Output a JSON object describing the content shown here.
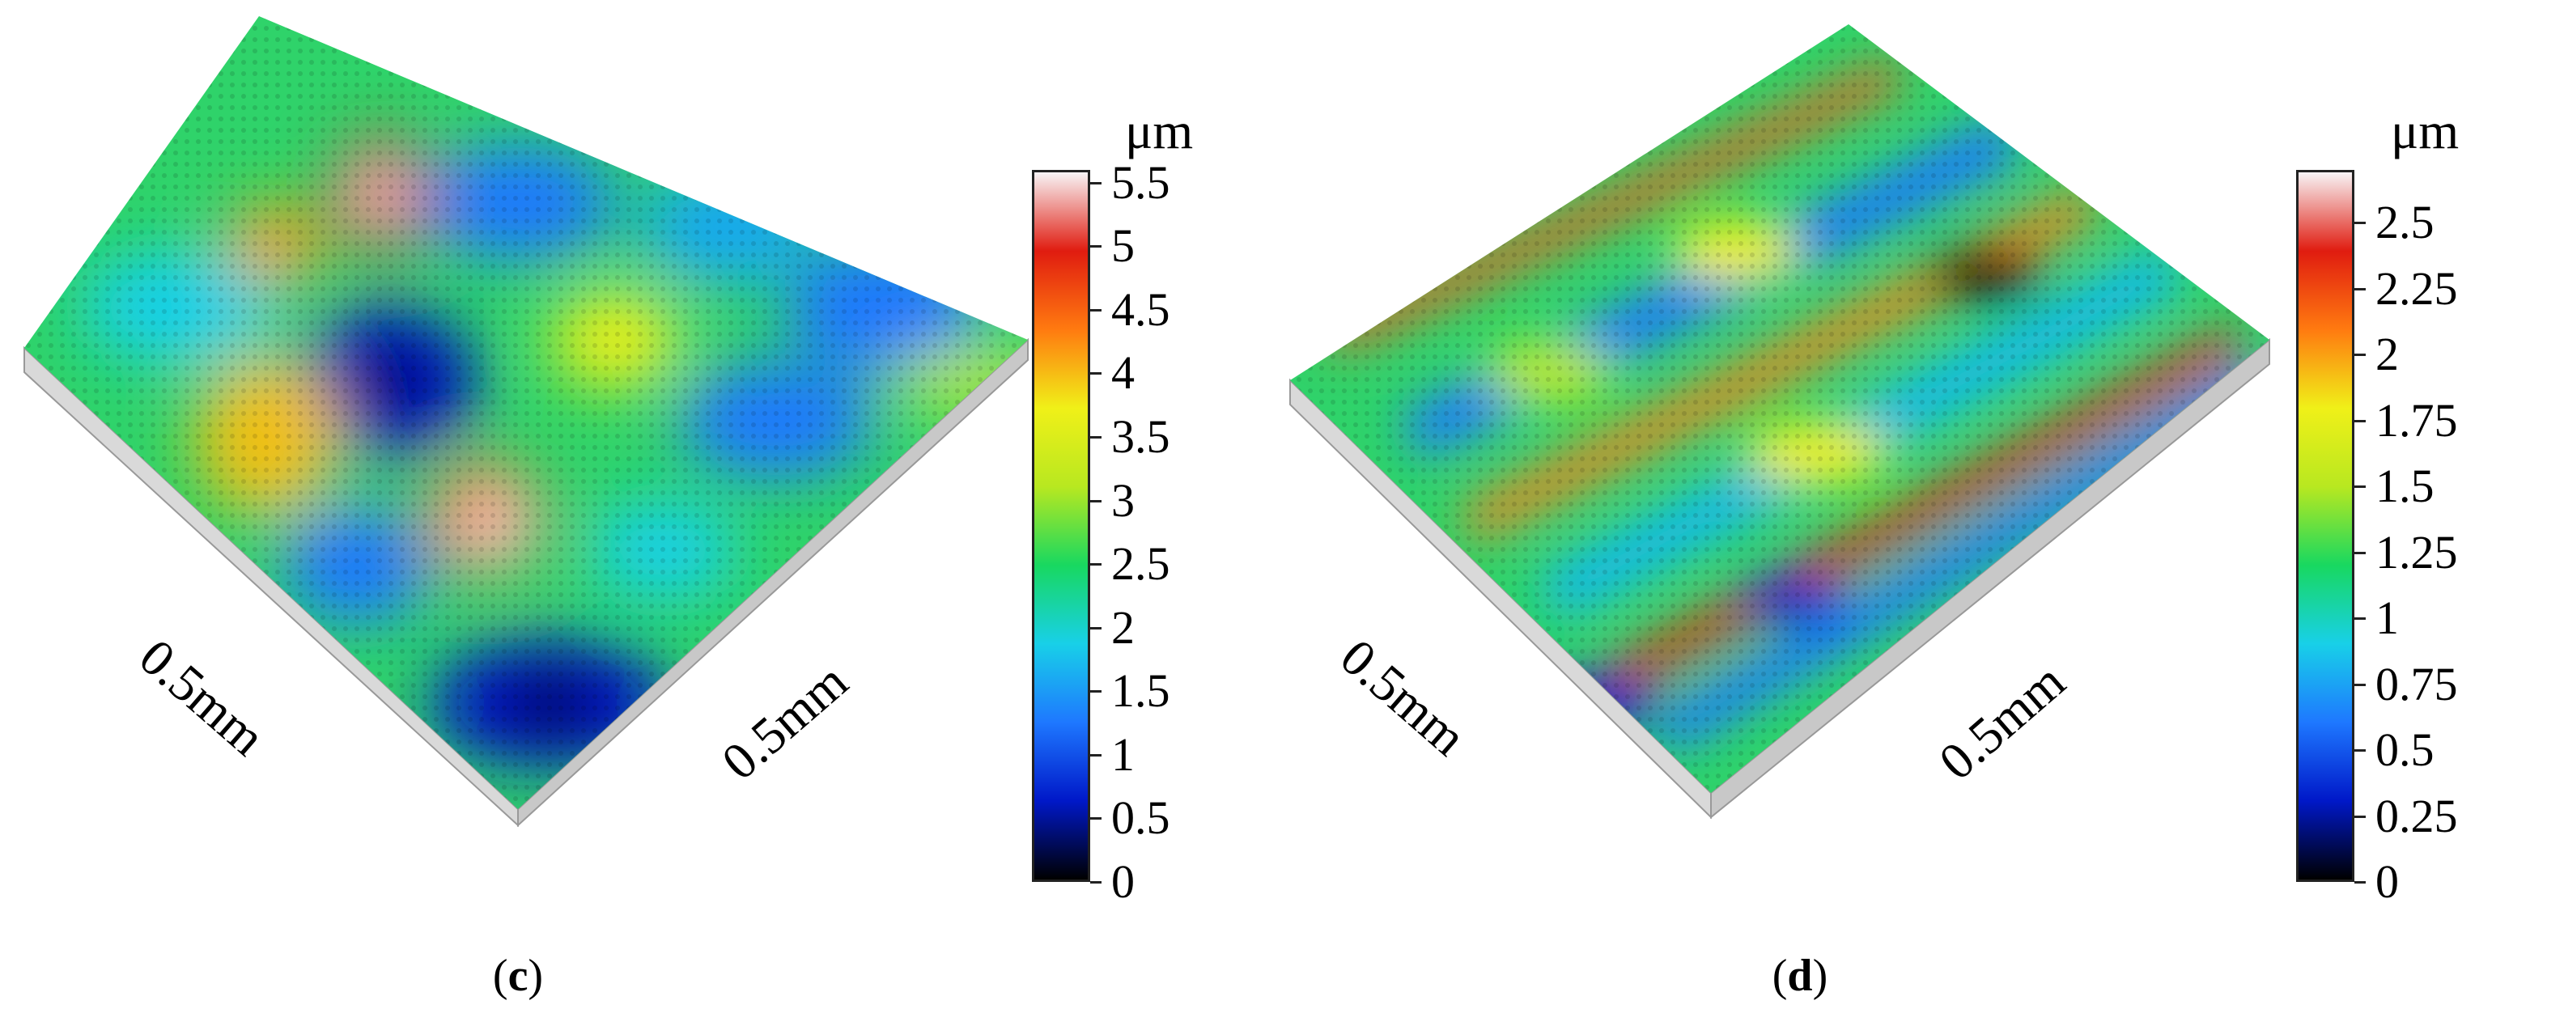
{
  "panels": [
    {
      "caption_open": "(",
      "caption_letter": "c",
      "caption_close": ")",
      "axis_x_label": "0.5mm",
      "axis_y_label": "0.5mm",
      "unit": "μm",
      "colorbar_ticks": [
        "5.5",
        "5",
        "4.5",
        "4",
        "3.5",
        "3",
        "2.5",
        "2",
        "1.5",
        "1",
        "0.5",
        "0"
      ],
      "colorbar_max": 5.6
    },
    {
      "caption_open": "(",
      "caption_letter": "d",
      "caption_close": ")",
      "axis_x_label": "0.5mm",
      "axis_y_label": "0.5mm",
      "unit": "μm",
      "colorbar_ticks": [
        "2.5",
        "2.25",
        "2",
        "1.75",
        "1.5",
        "1.25",
        "1",
        "0.75",
        "0.5",
        "0.25",
        "0"
      ],
      "colorbar_max": 2.7
    }
  ],
  "colors": {
    "colormap": [
      "#000000",
      "#0018c8",
      "#1e78ff",
      "#18d0e8",
      "#18d860",
      "#b8e820",
      "#f0f018",
      "#ff7a10",
      "#e01c10",
      "#f8f4f6"
    ],
    "base": "#d4d4d4"
  }
}
